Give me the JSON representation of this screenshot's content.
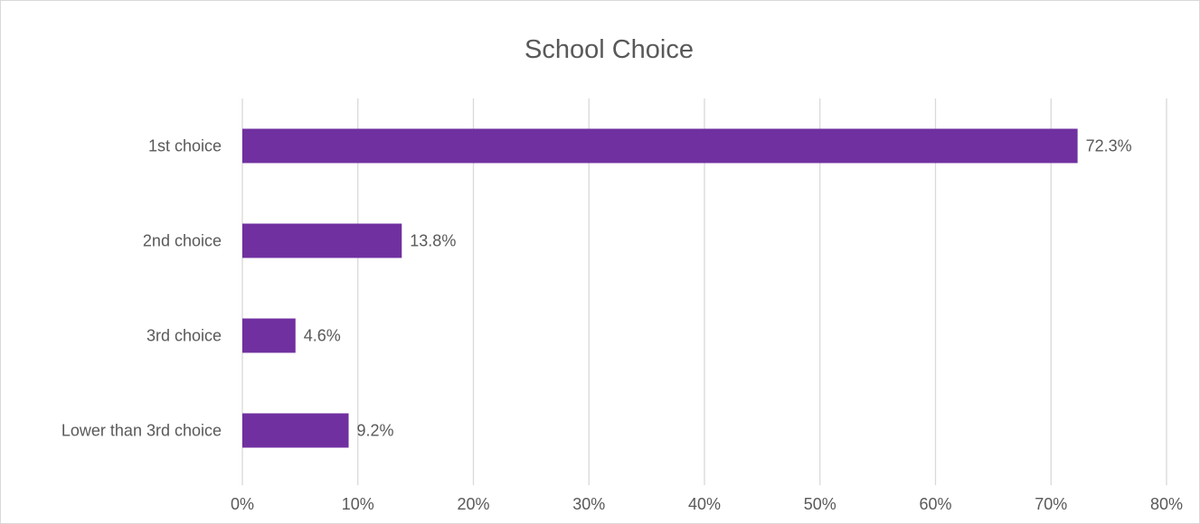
{
  "chart_data": {
    "type": "bar",
    "orientation": "horizontal",
    "title": "School Choice",
    "categories": [
      "1st choice",
      "2nd choice",
      "3rd choice",
      "Lower than 3rd choice"
    ],
    "values": [
      72.3,
      13.8,
      4.6,
      9.2
    ],
    "data_labels": [
      "72.3%",
      "13.8%",
      "4.6%",
      "9.2%"
    ],
    "xlim": [
      0,
      80
    ],
    "x_ticks": [
      0,
      10,
      20,
      30,
      40,
      50,
      60,
      70,
      80
    ],
    "x_tick_labels": [
      "0%",
      "10%",
      "20%",
      "30%",
      "40%",
      "50%",
      "60%",
      "70%",
      "80%"
    ],
    "xlabel": "",
    "ylabel": "",
    "grid": true,
    "legend": "none",
    "bar_color": "#7030a0",
    "gridline_color": "#d9d9d9"
  }
}
